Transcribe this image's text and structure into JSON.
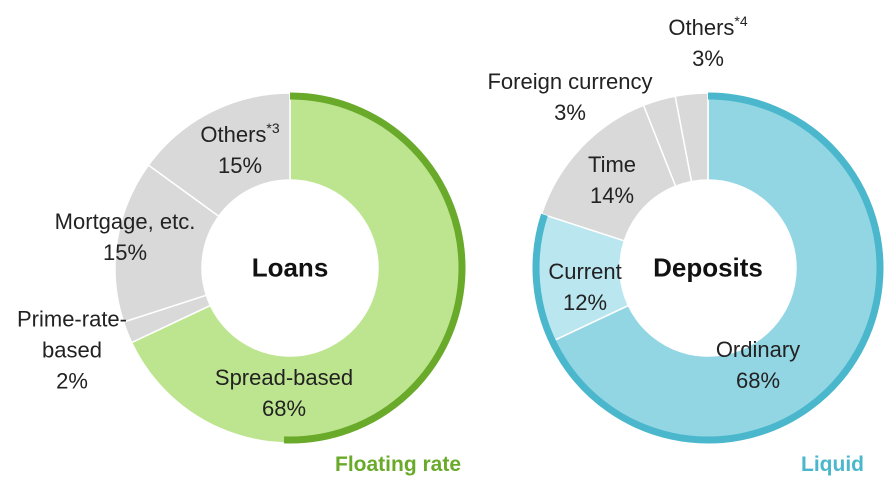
{
  "chart_data": [
    {
      "type": "pie",
      "title": "Loans",
      "categories": [
        "Spread-based",
        "Prime-rate-based",
        "Mortgage, etc.",
        "Others"
      ],
      "notes": [
        null,
        null,
        null,
        "*3"
      ],
      "values": [
        68,
        2,
        15,
        15
      ],
      "value_labels": [
        "68%",
        "2%",
        "15%",
        "15%"
      ],
      "colors": [
        "#bde58f",
        "#d9d9d9",
        "#d9d9d9",
        "#d9d9d9"
      ],
      "annotation": "Floating rate",
      "annotation_color": "#6aaa2a"
    },
    {
      "type": "pie",
      "title": "Deposits",
      "categories": [
        "Ordinary",
        "Current",
        "Time",
        "Foreign currency",
        "Others"
      ],
      "notes": [
        null,
        null,
        null,
        null,
        "*4"
      ],
      "values": [
        68,
        12,
        14,
        3,
        3
      ],
      "value_labels": [
        "68%",
        "12%",
        "14%",
        "3%",
        "3%"
      ],
      "colors": [
        "#92d5e3",
        "#b9e6ef",
        "#d9d9d9",
        "#d9d9d9",
        "#d9d9d9"
      ],
      "annotation": "Liquid",
      "annotation_color": "#4ab7cc"
    }
  ]
}
